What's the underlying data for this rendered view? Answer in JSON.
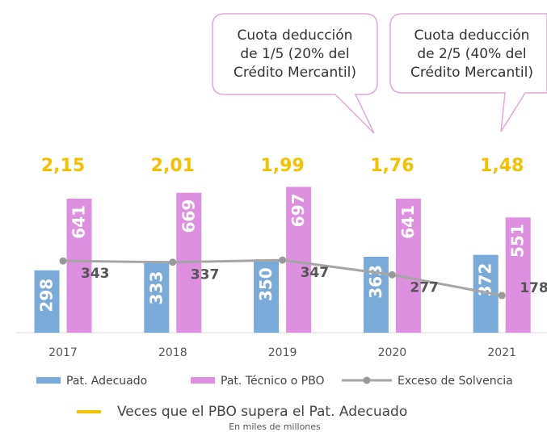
{
  "chart_data": {
    "type": "bar",
    "categories": [
      "2017",
      "2018",
      "2019",
      "2020",
      "2021"
    ],
    "series": [
      {
        "name": "Pat. Adecuado",
        "type": "bar",
        "color": "#7aaad8",
        "values": [
          298,
          333,
          350,
          363,
          372
        ]
      },
      {
        "name": "Pat. Técnico o PBO",
        "type": "bar",
        "color": "#dd8fe0",
        "values": [
          641,
          669,
          697,
          641,
          551
        ]
      },
      {
        "name": "Exceso de Solvencia",
        "type": "line",
        "color": "#a6a6a6",
        "values": [
          343,
          337,
          347,
          277,
          178
        ]
      },
      {
        "name": "Veces que el PBO supera el Pat. Adecuado",
        "type": "label",
        "color": "#f5c000",
        "values": [
          2.15,
          2.01,
          1.99,
          1.76,
          1.48
        ],
        "value_labels": [
          "2,15",
          "2,01",
          "1,99",
          "1,76",
          "1,48"
        ]
      }
    ],
    "ylim": [
      0,
      1000
    ],
    "annotations": [
      {
        "lines": [
          "Cuota deducción",
          "de 1/5 (20% del",
          "Crédito Mercantil)"
        ]
      },
      {
        "lines": [
          "Cuota deducción",
          "de 2/5 (40% del",
          "Crédito Mercantil)"
        ]
      }
    ],
    "note": "En miles de millones"
  }
}
